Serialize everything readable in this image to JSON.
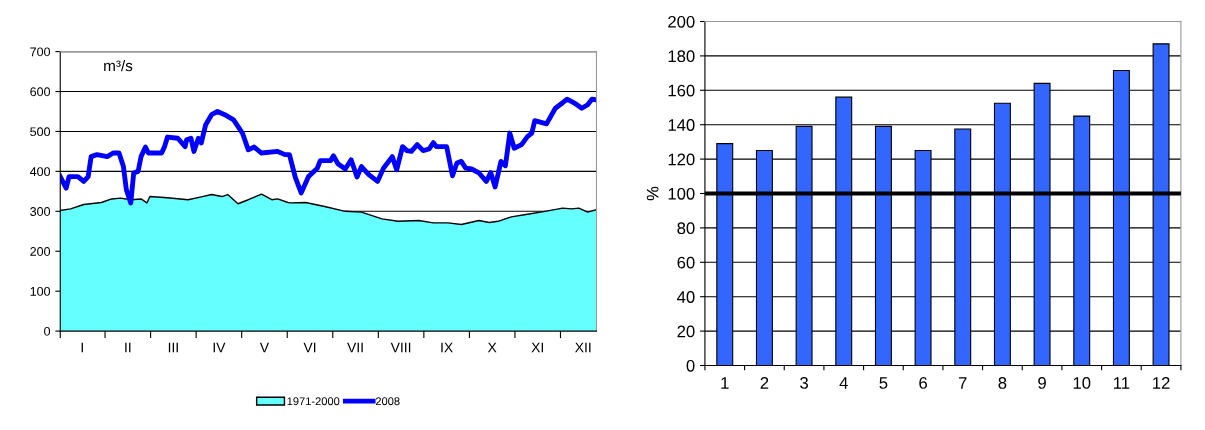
{
  "chart_data": [
    {
      "type": "area",
      "ylabel": "m³/s",
      "ylim": [
        0,
        700
      ],
      "yticks": [
        0,
        100,
        200,
        300,
        400,
        500,
        600,
        700
      ],
      "grid": "y",
      "legend": "bottom",
      "categories": [
        null,
        null,
        null,
        null,
        null,
        null,
        null,
        null,
        null,
        null,
        null,
        null,
        null,
        null,
        null,
        "I",
        null,
        null,
        null,
        null,
        null,
        null,
        null,
        null,
        null,
        null,
        null,
        null,
        null,
        null,
        null,
        null,
        null,
        null,
        null,
        null,
        null,
        null,
        null,
        null,
        null,
        null,
        null,
        null,
        null,
        null,
        "II",
        null,
        null,
        null,
        null,
        null,
        null,
        null,
        null,
        null,
        null,
        null,
        null,
        null,
        null,
        null,
        null,
        null,
        null,
        null,
        null,
        null,
        null,
        null,
        null,
        null,
        null,
        null,
        null,
        null,
        null,
        "III",
        null,
        null,
        null,
        null,
        null,
        null,
        null,
        null,
        null,
        null,
        null,
        null,
        null,
        null,
        null,
        null,
        null,
        null,
        null,
        null,
        null,
        null,
        null,
        null,
        null,
        null,
        null,
        null,
        null,
        null,
        "IV",
        null,
        null,
        null,
        null,
        null,
        null,
        null,
        null,
        null,
        null,
        null,
        null,
        null,
        null,
        null,
        null,
        null,
        null,
        null,
        null,
        null,
        null,
        null,
        null,
        null,
        null,
        null,
        null,
        null,
        null,
        "V",
        null,
        null,
        null,
        null,
        null,
        null,
        null,
        null,
        null,
        null,
        null,
        null,
        null,
        null,
        null,
        null,
        null,
        null,
        null,
        null,
        null,
        null,
        null,
        null,
        null,
        null,
        null,
        null,
        null,
        null,
        "VI",
        null,
        null,
        null,
        null,
        null,
        null,
        null,
        null,
        null,
        null,
        null,
        null,
        null,
        null,
        null,
        null,
        null,
        null,
        null,
        null,
        null,
        null,
        null,
        null,
        null,
        null,
        null,
        null,
        null,
        null,
        "VII",
        null,
        null,
        null,
        null,
        null,
        null,
        null,
        null,
        null,
        null,
        null,
        null,
        null,
        null,
        null,
        null,
        null,
        null,
        null,
        null,
        null,
        null,
        null,
        null,
        null,
        null,
        null,
        null,
        null,
        null,
        "VIII",
        null,
        null,
        null,
        null,
        null,
        null,
        null,
        null,
        null,
        null,
        null,
        null,
        null,
        null,
        null,
        null,
        null,
        null,
        null,
        null,
        null,
        null,
        null,
        null,
        null,
        null,
        null,
        null,
        null,
        null,
        "IX",
        null,
        null,
        null,
        null,
        null,
        null,
        null,
        null,
        null,
        null,
        null,
        null,
        null,
        null,
        null,
        null,
        null,
        null,
        null,
        null,
        null,
        null,
        null,
        null,
        null,
        null,
        null,
        null,
        null,
        null,
        "X",
        null,
        null,
        null,
        null,
        null,
        null,
        null,
        null,
        null,
        null,
        null,
        null,
        null,
        null,
        null,
        null,
        null,
        null,
        null,
        null,
        null,
        null,
        null,
        null,
        null,
        null,
        null,
        null,
        null,
        null,
        "XI",
        null,
        null,
        null,
        null,
        null,
        null,
        null,
        null,
        null,
        null,
        null,
        null,
        null,
        null,
        null,
        null,
        null,
        null,
        null,
        null,
        null,
        null,
        null,
        null,
        null,
        null,
        null,
        null,
        null,
        null,
        "XII",
        null,
        null,
        null,
        null,
        null,
        null,
        null,
        null,
        null
      ],
      "series": [
        {
          "name": "1971-2000",
          "type": "area",
          "color": "#66ffff",
          "values": [
            302,
            null,
            null,
            null,
            null,
            null,
            null,
            306,
            null,
            null,
            null,
            null,
            null,
            null,
            null,
            null,
            317,
            null,
            null,
            null,
            null,
            null,
            null,
            null,
            null,
            null,
            null,
            null,
            322,
            null,
            null,
            null,
            null,
            null,
            null,
            331,
            null,
            null,
            null,
            null,
            null,
            333,
            null,
            null,
            null,
            null,
            null,
            null,
            329,
            null,
            null,
            null,
            null,
            null,
            null,
            331,
            null,
            null,
            null,
            321,
            null,
            337,
            null,
            null,
            null,
            null,
            null,
            null,
            null,
            null,
            null,
            null,
            null,
            334,
            null,
            null,
            null,
            null,
            null,
            null,
            null,
            null,
            null,
            null,
            null,
            null,
            null,
            329,
            null,
            null,
            null,
            null,
            null,
            null,
            null,
            null,
            336,
            null,
            null,
            null,
            null,
            null,
            null,
            342,
            null,
            null,
            null,
            null,
            null,
            null,
            337,
            null,
            null,
            null,
            342,
            null,
            null,
            null,
            null,
            null,
            null,
            319,
            null,
            null,
            null,
            null,
            null,
            null,
            329,
            null,
            null,
            null,
            null,
            null,
            null,
            null,
            null,
            343,
            null,
            null,
            null,
            null,
            null,
            null,
            329,
            null,
            null,
            null,
            331,
            null,
            null,
            null,
            null,
            null,
            null,
            322,
            null,
            321,
            null,
            null,
            null,
            null,
            null,
            null,
            null,
            null,
            null,
            322,
            null,
            null,
            null,
            null,
            null,
            null,
            null,
            null,
            null,
            null,
            null,
            null,
            312,
            null,
            null,
            null,
            null,
            null,
            null,
            null,
            null,
            null,
            null,
            null,
            null,
            null,
            300,
            null,
            null,
            null,
            null,
            null,
            null,
            null,
            null,
            null,
            null,
            298,
            null,
            null,
            null,
            null,
            null,
            null,
            null,
            null,
            null,
            null,
            null,
            null,
            null,
            281,
            null,
            null,
            null,
            null,
            null,
            null,
            null,
            null,
            null,
            null,
            275,
            null,
            null,
            null,
            null,
            null,
            null,
            null,
            null,
            null,
            null,
            null,
            null,
            null,
            277,
            null,
            null,
            null,
            null,
            null,
            null,
            null,
            null,
            null,
            271,
            null,
            null,
            null,
            null,
            null,
            null,
            null,
            null,
            null,
            271,
            null,
            null,
            null,
            null,
            null,
            null,
            null,
            null,
            267,
            null,
            null,
            null,
            null,
            null,
            null,
            null,
            null,
            null,
            null,
            null,
            277,
            null,
            null,
            null,
            null,
            null,
            null,
            272,
            null,
            null,
            null,
            null,
            null,
            275,
            null,
            null,
            null,
            null,
            null,
            null,
            null,
            null,
            286,
            null,
            null,
            null,
            null,
            null,
            null,
            null,
            null,
            null,
            292,
            null,
            null,
            null,
            null,
            null,
            null,
            null,
            null,
            null,
            null,
            null,
            null,
            300,
            null,
            null,
            null,
            null,
            null,
            null,
            null,
            null,
            null,
            null,
            null,
            308,
            null,
            null,
            null,
            null,
            null,
            306,
            null,
            null,
            null,
            null,
            308,
            null,
            null,
            null,
            null,
            null,
            298,
            null,
            null,
            null,
            null,
            null,
            304
          ]
        },
        {
          "name": "2008",
          "type": "line",
          "color": "#0000ff",
          "values": [
            387,
            null,
            null,
            null,
            358,
            null,
            387,
            null,
            null,
            null,
            null,
            null,
            387,
            null,
            null,
            null,
            375,
            null,
            null,
            387,
            null,
            437,
            null,
            null,
            null,
            442,
            null,
            null,
            null,
            null,
            null,
            null,
            437,
            null,
            null,
            null,
            446,
            null,
            null,
            null,
            446,
            null,
            null,
            412,
            null,
            354,
            null,
            null,
            321,
            null,
            396,
            null,
            null,
            400,
            null,
            437,
            null,
            null,
            461,
            null,
            446,
            null,
            null,
            null,
            null,
            null,
            null,
            null,
            null,
            446,
            null,
            462,
            null,
            486,
            null,
            null,
            null,
            null,
            null,
            null,
            483,
            null,
            null,
            null,
            null,
            462,
            479,
            null,
            null,
            483,
            null,
            450,
            null,
            null,
            483,
            null,
            471,
            487,
            null,
            517,
            null,
            null,
            null,
            542,
            null,
            null,
            null,
            550,
            null,
            null,
            null,
            null,
            542,
            null,
            null,
            null,
            null,
            null,
            529,
            null,
            null,
            null,
            null,
            null,
            496,
            null,
            null,
            null,
            454,
            null,
            null,
            null,
            461,
            null,
            null,
            null,
            null,
            446,
            null,
            null,
            null,
            null,
            null,
            null,
            null,
            null,
            null,
            null,
            450,
            null,
            null,
            null,
            null,
            442,
            null,
            null,
            442,
            null,
            null,
            null,
            385,
            null,
            null,
            null,
            346,
            null,
            null,
            null,
            null,
            387,
            null,
            null,
            null,
            null,
            null,
            408,
            null,
            427,
            null,
            null,
            null,
            null,
            null,
            null,
            427,
            null,
            439,
            null,
            null,
            419,
            null,
            null,
            null,
            null,
            406,
            null,
            null,
            null,
            429,
            null,
            null,
            null,
            386,
            null,
            null,
            412,
            null,
            null,
            null,
            null,
            392,
            null,
            null,
            null,
            null,
            null,
            375,
            null,
            null,
            null,
            408,
            null,
            null,
            null,
            null,
            null,
            437,
            null,
            null,
            404,
            null,
            null,
            null,
            462,
            null,
            null,
            452,
            null,
            null,
            450,
            null,
            null,
            null,
            467,
            null,
            null,
            null,
            452,
            null,
            null,
            null,
            456,
            null,
            null,
            472,
            null,
            462,
            null,
            null,
            null,
            null,
            null,
            null,
            462,
            null,
            null,
            null,
            389,
            null,
            null,
            421,
            null,
            null,
            425,
            null,
            null,
            408,
            null,
            null,
            null,
            406,
            null,
            null,
            null,
            null,
            396,
            null,
            null,
            null,
            null,
            375,
            null,
            null,
            397,
            null,
            null,
            361,
            null,
            null,
            null,
            425,
            null,
            null,
            414,
            null,
            null,
            496,
            null,
            null,
            458,
            null,
            null,
            null,
            null,
            467,
            null,
            null,
            null,
            487,
            null,
            null,
            496,
            null,
            527,
            null,
            null,
            null,
            null,
            null,
            null,
            null,
            519,
            null,
            null,
            null,
            null,
            null,
            558,
            null,
            null,
            null,
            null,
            572,
            null,
            null,
            581,
            null,
            null,
            null,
            null,
            571,
            null,
            null,
            null,
            null,
            558,
            null,
            null,
            null,
            567,
            null,
            null,
            581,
            null,
            null,
            579
          ]
        }
      ]
    },
    {
      "type": "bar",
      "ylabel": "%",
      "categories": [
        "1",
        "2",
        "3",
        "4",
        "5",
        "6",
        "7",
        "8",
        "9",
        "10",
        "11",
        "12"
      ],
      "values": [
        129,
        125,
        139,
        156,
        139,
        125,
        137.5,
        152.5,
        164,
        145,
        171.5,
        187
      ],
      "color": "#3366ff",
      "ylim": [
        0,
        200
      ],
      "yticks": [
        0,
        20,
        40,
        60,
        80,
        100,
        120,
        140,
        160,
        180,
        200
      ],
      "grid": "y",
      "ref_lines": [
        {
          "axis": "y",
          "value": 100,
          "color": "#000000"
        }
      ]
    }
  ]
}
